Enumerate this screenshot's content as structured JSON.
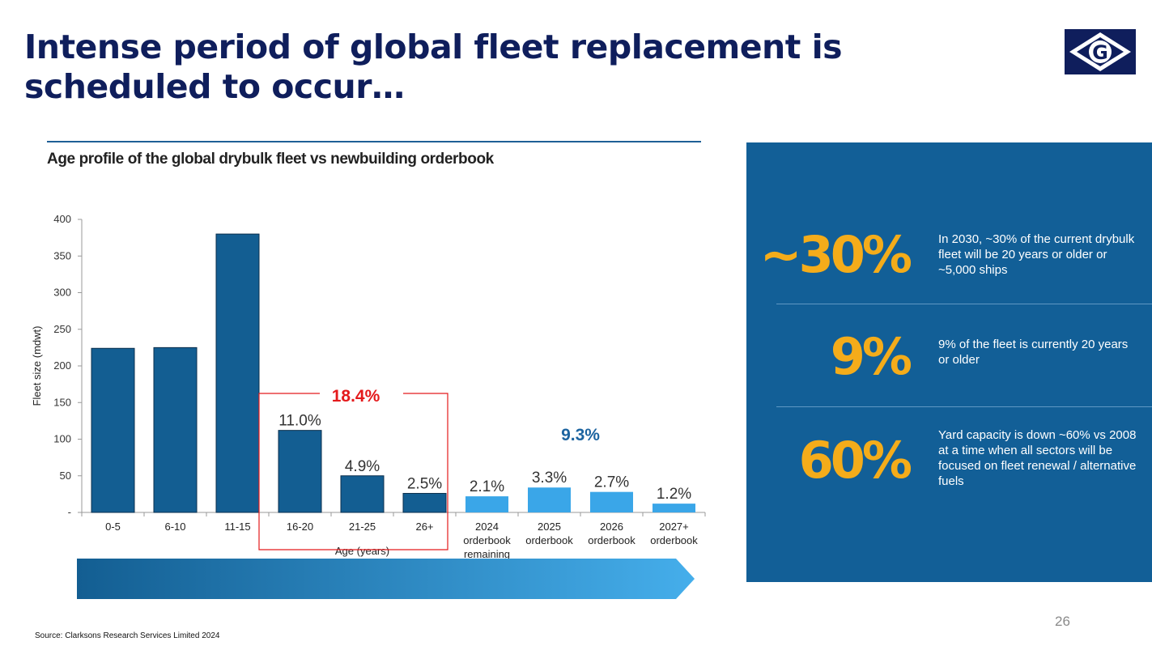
{
  "title": "Intense period of global fleet replacement is scheduled to occur…",
  "logo_letter": "G",
  "chart_title": "Age profile of the global drybulk fleet vs newbuilding orderbook",
  "source": "Source: Clarksons Research Services Limited 2024",
  "page_number": "26",
  "colors": {
    "title": "#0f1e5c",
    "fleet_bar": "#135e92",
    "orderbook_bar": "#3aa6e8",
    "highlight": "#e41a1c",
    "orderbook_label": "#1c64a0",
    "panel": "#125f97",
    "stat_number": "#f4ac1a"
  },
  "chart_data": {
    "type": "bar",
    "categories": [
      "0-5",
      "6-10",
      "11-15",
      "16-20",
      "21-25",
      "26+",
      "2024 orderbook remaining",
      "2025 orderbook",
      "2026 orderbook",
      "2027+ orderbook"
    ],
    "values": [
      224,
      225,
      380,
      112,
      50,
      26,
      22,
      34,
      28,
      12
    ],
    "data_labels": [
      "",
      "",
      "",
      "11.0%",
      "4.9%",
      "2.5%",
      "2.1%",
      "3.3%",
      "2.7%",
      "1.2%"
    ],
    "series_kind": [
      "fleet",
      "fleet",
      "fleet",
      "fleet",
      "fleet",
      "fleet",
      "orderbook",
      "orderbook",
      "orderbook",
      "orderbook"
    ],
    "ylabel": "Fleet size (mdwt)",
    "xlabel": "Age (years)",
    "ylim": [
      0,
      400
    ],
    "yticks": [
      0,
      50,
      100,
      150,
      200,
      250,
      300,
      350,
      400
    ],
    "ytick_labels": [
      "-",
      "50",
      "100",
      "150",
      "200",
      "250",
      "300",
      "350",
      "400"
    ],
    "grid": false,
    "annotations": [
      {
        "text": "18.4%",
        "group": "16-20 to 26+",
        "color": "red"
      },
      {
        "text": "9.3%",
        "group": "orderbook",
        "color": "blue"
      }
    ]
  },
  "stats": [
    {
      "value": "~30%",
      "text": "In 2030, ~30% of the current drybulk fleet will be 20 years or older or ~5,000 ships"
    },
    {
      "value": "9%",
      "text": "9% of the fleet is currently 20 years or older"
    },
    {
      "value": "60%",
      "text": "Yard capacity is down ~60% vs 2008 at a time when all sectors will be focused on fleet renewal / alternative fuels"
    }
  ]
}
